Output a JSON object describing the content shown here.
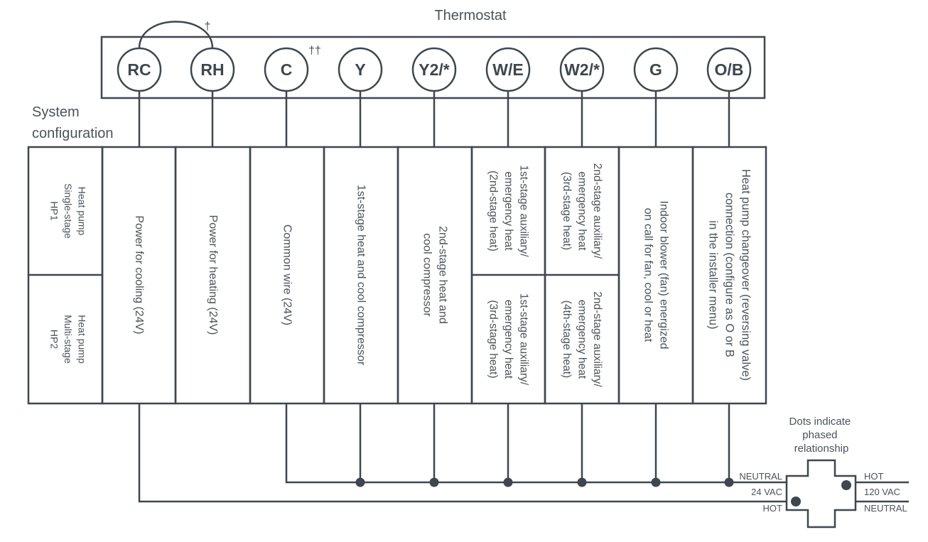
{
  "title": "Thermostat",
  "jumper_mark": "†",
  "system_config_label": [
    "System",
    "configuration"
  ],
  "terminals": [
    {
      "label": "RC",
      "mark": ""
    },
    {
      "label": "RH",
      "mark": ""
    },
    {
      "label": "C",
      "mark": "††"
    },
    {
      "label": "Y",
      "mark": ""
    },
    {
      "label": "Y2/*",
      "mark": ""
    },
    {
      "label": "W/E",
      "mark": ""
    },
    {
      "label": "W2/*",
      "mark": ""
    },
    {
      "label": "G",
      "mark": ""
    },
    {
      "label": "O/B",
      "mark": ""
    }
  ],
  "system_types": [
    [
      "Heat pump",
      "Single-stage",
      "HP1"
    ],
    [
      "Heat pump",
      "Multi-stage",
      "HP2"
    ]
  ],
  "descriptions": [
    {
      "terminal": "RC",
      "cells": [
        [
          "Power for cooling (24V)"
        ]
      ]
    },
    {
      "terminal": "RH",
      "cells": [
        [
          "Power for heating (24V)"
        ]
      ]
    },
    {
      "terminal": "C",
      "cells": [
        [
          "Common wire (24V)"
        ]
      ]
    },
    {
      "terminal": "Y",
      "cells": [
        [
          "1st-stage heat and cool compressor"
        ]
      ]
    },
    {
      "terminal": "Y2/*",
      "cells": [
        [
          "2nd-stage heat and",
          "cool compressor"
        ]
      ]
    },
    {
      "terminal": "W/E",
      "cells": [
        [
          "1st-stage auxiliary/",
          "emergency heat",
          "(2nd-stage heat)"
        ],
        [
          "1st-stage auxiliary/",
          "emergency heat",
          "(3rd-stage heat)"
        ]
      ]
    },
    {
      "terminal": "W2/*",
      "cells": [
        [
          "2nd-stage auxiliary/",
          "emergency heat",
          "(3rd-stage heat)"
        ],
        [
          "2nd-stage auxiliary/",
          "emergency heat",
          "(4th-stage heat)"
        ]
      ]
    },
    {
      "terminal": "G",
      "cells": [
        [
          "Indoor blower (fan) energized",
          "on call for fan, cool or heat"
        ]
      ]
    },
    {
      "terminal": "O/B",
      "cells": [
        [
          "Heat pump changeover (reversing valve)",
          "connection (configure as O or B",
          "in the installer menu)"
        ]
      ]
    }
  ],
  "transformer": {
    "caption": [
      "Dots indicate",
      "phased",
      "relationship"
    ],
    "secondary": {
      "top": "NEUTRAL",
      "voltage": "24 VAC",
      "bottom": "HOT"
    },
    "primary": {
      "top": "HOT",
      "voltage": "120 VAC",
      "bottom": "NEUTRAL"
    }
  },
  "colors": {
    "line": "#3d4750",
    "text": "#4a535b"
  }
}
